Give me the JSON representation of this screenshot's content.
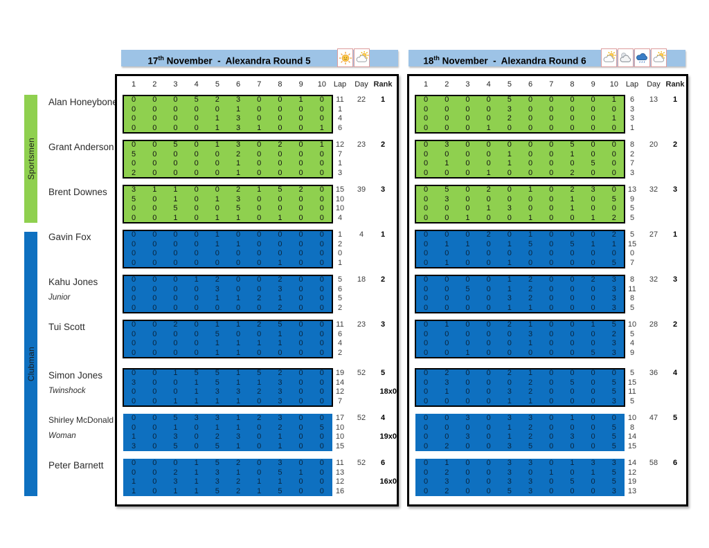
{
  "colors": {
    "header_bar": "#9DC3E6",
    "sportsmen_green": "#8FD04F",
    "clubman_blue": "#0E70C0",
    "table_border": "#000000"
  },
  "header_bars": [
    {
      "date_day": "17",
      "date_sup": "th",
      "title_rest": " November  -  Alexandra Round 5",
      "weather_icons": [
        "sun-icon",
        "sun-cloud-icon"
      ]
    },
    {
      "date_day": "18",
      "date_sup": "th",
      "title_rest": " November  -  Alexandra Round 6",
      "weather_icons": [
        "sun-cloud-icon",
        "moon-cloud-icon",
        "rain-cloud-icon",
        "sun-cloud-icon"
      ]
    }
  ],
  "groups": [
    {
      "label": "Sportsmen",
      "color": "#8FD04F"
    },
    {
      "label": "Clubman",
      "color": "#0E70C0"
    }
  ],
  "column_headers": [
    "1",
    "2",
    "3",
    "4",
    "5",
    "6",
    "7",
    "8",
    "9",
    "10",
    "Lap",
    "Day",
    "Rank"
  ],
  "riders": [
    {
      "name": "Alan Honeybone",
      "subtitle": "",
      "group": "Sportsmen"
    },
    {
      "name": "Grant Anderson",
      "subtitle": "",
      "group": "Sportsmen"
    },
    {
      "name": "Brent Downes",
      "subtitle": "",
      "group": "Sportsmen"
    },
    {
      "name": "Gavin Fox",
      "subtitle": "",
      "group": "Clubman"
    },
    {
      "name": "Kahu Jones",
      "subtitle": "Junior",
      "group": "Clubman"
    },
    {
      "name": "Tui Scott",
      "subtitle": "",
      "group": "Clubman"
    },
    {
      "name": "Simon Jones",
      "subtitle": "Twinshock",
      "group": "Clubman"
    },
    {
      "name": "Shirley McDonald",
      "subtitle": "Woman",
      "group": "Clubman"
    },
    {
      "name": "Peter Barnett",
      "subtitle": "",
      "group": "Clubman"
    }
  ],
  "results": {
    "round5": [
      {
        "scores": [
          [
            0,
            0,
            0,
            5,
            2,
            3,
            0,
            0,
            1,
            0
          ],
          [
            0,
            0,
            0,
            0,
            0,
            1,
            0,
            0,
            0,
            0
          ],
          [
            0,
            0,
            0,
            0,
            1,
            3,
            0,
            0,
            0,
            0
          ],
          [
            0,
            0,
            0,
            0,
            1,
            3,
            1,
            0,
            0,
            1
          ]
        ],
        "laps": [
          11,
          1,
          4,
          6
        ],
        "day": 22,
        "rank": 1,
        "note": ""
      },
      {
        "scores": [
          [
            0,
            0,
            5,
            0,
            1,
            3,
            0,
            2,
            0,
            1
          ],
          [
            5,
            0,
            0,
            0,
            0,
            2,
            0,
            0,
            0,
            0
          ],
          [
            0,
            0,
            0,
            0,
            0,
            1,
            0,
            0,
            0,
            0
          ],
          [
            2,
            0,
            0,
            0,
            0,
            1,
            0,
            0,
            0,
            0
          ]
        ],
        "laps": [
          12,
          7,
          1,
          3
        ],
        "day": 23,
        "rank": 2,
        "note": ""
      },
      {
        "scores": [
          [
            3,
            1,
            1,
            0,
            0,
            2,
            1,
            5,
            2,
            0
          ],
          [
            5,
            0,
            1,
            0,
            1,
            3,
            0,
            0,
            0,
            0
          ],
          [
            0,
            0,
            5,
            0,
            0,
            5,
            0,
            0,
            0,
            0
          ],
          [
            0,
            0,
            1,
            0,
            1,
            1,
            0,
            1,
            0,
            0
          ]
        ],
        "laps": [
          15,
          10,
          10,
          4
        ],
        "day": 39,
        "rank": 3,
        "note": ""
      },
      {
        "scores": [
          [
            0,
            0,
            0,
            0,
            1,
            0,
            0,
            0,
            0,
            0
          ],
          [
            0,
            0,
            0,
            0,
            1,
            1,
            0,
            0,
            0,
            0
          ],
          [
            0,
            0,
            0,
            0,
            0,
            0,
            0,
            0,
            0,
            0
          ],
          [
            0,
            0,
            0,
            0,
            0,
            0,
            0,
            1,
            0,
            0
          ]
        ],
        "laps": [
          1,
          2,
          0,
          1
        ],
        "day": 4,
        "rank": 1,
        "note": ""
      },
      {
        "scores": [
          [
            0,
            0,
            0,
            1,
            2,
            0,
            0,
            2,
            0,
            0
          ],
          [
            0,
            0,
            0,
            0,
            3,
            0,
            0,
            3,
            0,
            0
          ],
          [
            0,
            0,
            0,
            0,
            1,
            1,
            2,
            1,
            0,
            0
          ],
          [
            0,
            0,
            0,
            0,
            0,
            0,
            0,
            2,
            0,
            0
          ]
        ],
        "laps": [
          5,
          6,
          5,
          2
        ],
        "day": 18,
        "rank": 2,
        "note": ""
      },
      {
        "scores": [
          [
            0,
            0,
            2,
            0,
            1,
            1,
            2,
            5,
            0,
            0
          ],
          [
            0,
            0,
            0,
            0,
            5,
            0,
            0,
            1,
            0,
            0
          ],
          [
            0,
            0,
            0,
            0,
            1,
            1,
            1,
            1,
            0,
            0
          ],
          [
            0,
            0,
            0,
            0,
            1,
            1,
            0,
            0,
            0,
            0
          ]
        ],
        "laps": [
          11,
          6,
          4,
          2
        ],
        "day": 23,
        "rank": 3,
        "note": ""
      },
      {
        "scores": [
          [
            0,
            0,
            1,
            5,
            5,
            1,
            5,
            2,
            0,
            0
          ],
          [
            3,
            0,
            0,
            1,
            5,
            1,
            1,
            3,
            0,
            0
          ],
          [
            0,
            0,
            0,
            1,
            3,
            3,
            2,
            3,
            0,
            0
          ],
          [
            0,
            0,
            1,
            1,
            1,
            1,
            0,
            3,
            0,
            0
          ]
        ],
        "laps": [
          19,
          14,
          12,
          7
        ],
        "day": 52,
        "rank": 5,
        "note": "18x0"
      },
      {
        "scores": [
          [
            0,
            0,
            5,
            3,
            3,
            1,
            2,
            3,
            0,
            0
          ],
          [
            0,
            0,
            1,
            0,
            1,
            1,
            0,
            2,
            0,
            5
          ],
          [
            1,
            0,
            3,
            0,
            2,
            3,
            0,
            1,
            0,
            0
          ],
          [
            3,
            0,
            5,
            0,
            5,
            1,
            0,
            1,
            0,
            0
          ]
        ],
        "laps": [
          17,
          10,
          10,
          15
        ],
        "day": 52,
        "rank": 4,
        "note": "19x0"
      },
      {
        "scores": [
          [
            0,
            0,
            0,
            1,
            5,
            2,
            0,
            3,
            0,
            0
          ],
          [
            0,
            0,
            2,
            1,
            3,
            1,
            0,
            5,
            1,
            0
          ],
          [
            1,
            0,
            3,
            1,
            3,
            2,
            1,
            1,
            0,
            0
          ],
          [
            1,
            0,
            1,
            1,
            5,
            2,
            1,
            5,
            0,
            0
          ]
        ],
        "laps": [
          11,
          13,
          12,
          16
        ],
        "day": 52,
        "rank": 6,
        "note": "16x0"
      }
    ],
    "round6": [
      {
        "scores": [
          [
            0,
            0,
            0,
            0,
            5,
            0,
            0,
            0,
            0,
            1
          ],
          [
            0,
            0,
            0,
            0,
            3,
            0,
            0,
            0,
            0,
            0
          ],
          [
            0,
            0,
            0,
            0,
            2,
            0,
            0,
            0,
            0,
            1
          ],
          [
            0,
            0,
            0,
            1,
            0,
            0,
            0,
            0,
            0,
            0
          ]
        ],
        "laps": [
          6,
          3,
          3,
          1
        ],
        "day": 13,
        "rank": 1,
        "note": ""
      },
      {
        "scores": [
          [
            0,
            3,
            0,
            0,
            0,
            0,
            0,
            5,
            0,
            0
          ],
          [
            0,
            0,
            0,
            0,
            1,
            0,
            0,
            1,
            0,
            0
          ],
          [
            0,
            1,
            0,
            0,
            1,
            0,
            0,
            0,
            5,
            0
          ],
          [
            0,
            0,
            0,
            1,
            0,
            0,
            0,
            2,
            0,
            0
          ]
        ],
        "laps": [
          8,
          2,
          7,
          3
        ],
        "day": 20,
        "rank": 2,
        "note": ""
      },
      {
        "scores": [
          [
            0,
            5,
            0,
            2,
            0,
            1,
            0,
            2,
            3,
            0
          ],
          [
            0,
            3,
            0,
            0,
            0,
            0,
            0,
            1,
            0,
            5
          ],
          [
            0,
            0,
            0,
            1,
            3,
            0,
            0,
            1,
            0,
            0
          ],
          [
            0,
            0,
            1,
            0,
            0,
            1,
            0,
            0,
            1,
            2
          ]
        ],
        "laps": [
          13,
          9,
          5,
          5
        ],
        "day": 32,
        "rank": 3,
        "note": ""
      },
      {
        "scores": [
          [
            0,
            0,
            0,
            2,
            0,
            1,
            0,
            0,
            0,
            2
          ],
          [
            0,
            1,
            1,
            0,
            1,
            5,
            0,
            5,
            1,
            1
          ],
          [
            0,
            0,
            0,
            0,
            0,
            0,
            0,
            0,
            0,
            0
          ],
          [
            0,
            1,
            0,
            0,
            1,
            0,
            0,
            0,
            0,
            5
          ]
        ],
        "laps": [
          5,
          15,
          0,
          7
        ],
        "day": 27,
        "rank": 1,
        "note": ""
      },
      {
        "scores": [
          [
            0,
            0,
            0,
            0,
            1,
            2,
            0,
            0,
            2,
            3
          ],
          [
            0,
            0,
            5,
            0,
            1,
            2,
            0,
            0,
            0,
            3
          ],
          [
            0,
            0,
            0,
            0,
            3,
            2,
            0,
            0,
            0,
            3
          ],
          [
            0,
            0,
            0,
            0,
            1,
            1,
            0,
            0,
            0,
            3
          ]
        ],
        "laps": [
          8,
          11,
          8,
          5
        ],
        "day": 32,
        "rank": 3,
        "note": ""
      },
      {
        "scores": [
          [
            0,
            1,
            0,
            0,
            2,
            1,
            0,
            0,
            1,
            5
          ],
          [
            0,
            0,
            0,
            0,
            0,
            3,
            0,
            0,
            0,
            2
          ],
          [
            0,
            0,
            0,
            0,
            0,
            1,
            0,
            0,
            0,
            3
          ],
          [
            0,
            0,
            1,
            0,
            0,
            0,
            0,
            0,
            5,
            3
          ]
        ],
        "laps": [
          10,
          5,
          4,
          9
        ],
        "day": 28,
        "rank": 2,
        "note": ""
      },
      {
        "scores": [
          [
            0,
            2,
            0,
            0,
            2,
            1,
            0,
            0,
            0,
            0
          ],
          [
            0,
            3,
            0,
            0,
            0,
            2,
            0,
            5,
            0,
            5
          ],
          [
            0,
            1,
            0,
            0,
            3,
            2,
            0,
            0,
            0,
            5
          ],
          [
            0,
            0,
            0,
            0,
            1,
            1,
            0,
            0,
            0,
            3
          ]
        ],
        "laps": [
          5,
          15,
          11,
          5
        ],
        "day": 36,
        "rank": 4,
        "note": ""
      },
      {
        "scores": [
          [
            0,
            0,
            3,
            0,
            3,
            3,
            0,
            1,
            0,
            0
          ],
          [
            0,
            0,
            0,
            0,
            1,
            2,
            0,
            0,
            0,
            5
          ],
          [
            0,
            0,
            3,
            0,
            1,
            2,
            0,
            3,
            0,
            5
          ],
          [
            0,
            2,
            0,
            0,
            3,
            5,
            0,
            0,
            0,
            5
          ]
        ],
        "laps": [
          10,
          8,
          14,
          15
        ],
        "day": 47,
        "rank": 5,
        "note": ""
      },
      {
        "scores": [
          [
            0,
            1,
            0,
            0,
            3,
            3,
            0,
            1,
            3,
            3
          ],
          [
            0,
            2,
            0,
            0,
            3,
            0,
            1,
            0,
            1,
            5
          ],
          [
            0,
            3,
            0,
            0,
            3,
            3,
            0,
            5,
            0,
            5
          ],
          [
            0,
            2,
            0,
            0,
            5,
            3,
            0,
            0,
            0,
            3
          ]
        ],
        "laps": [
          14,
          12,
          19,
          13
        ],
        "day": 58,
        "rank": 6,
        "note": ""
      }
    ]
  }
}
